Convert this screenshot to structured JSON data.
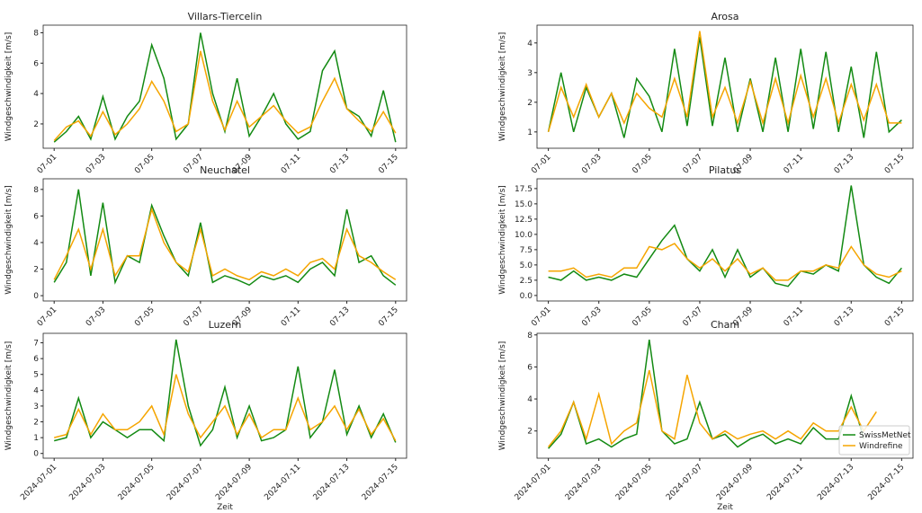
{
  "chart_data": [
    {
      "type": "line",
      "title": "Villars-Tiercelin",
      "ylabel": "Windgeschwindigkeit [m/s]",
      "x": [
        0,
        0.5,
        1,
        1.5,
        2,
        2.5,
        3,
        3.5,
        4,
        4.5,
        5,
        5.5,
        6,
        6.5,
        7,
        7.5,
        8,
        8.5,
        9,
        9.5,
        10,
        10.5,
        11,
        11.5,
        12,
        12.5,
        13,
        13.5,
        14
      ],
      "xlim": [
        -0.45,
        14.45
      ],
      "xticks": [
        {
          "value": 0,
          "label": "07-01"
        },
        {
          "value": 2,
          "label": "07-03"
        },
        {
          "value": 4,
          "label": "07-05"
        },
        {
          "value": 6,
          "label": "07-07"
        },
        {
          "value": 8,
          "label": "07-09"
        },
        {
          "value": 10,
          "label": "07-11"
        },
        {
          "value": 12,
          "label": "07-13"
        },
        {
          "value": 14,
          "label": "07-15"
        }
      ],
      "ylim": [
        0.4,
        8.5
      ],
      "yticks": [
        2,
        4,
        6,
        8
      ],
      "series": [
        {
          "color": "#138a13",
          "values": [
            0.8,
            1.5,
            2.5,
            1.0,
            3.8,
            1.0,
            2.5,
            3.5,
            7.2,
            5.0,
            1.0,
            2.0,
            8.0,
            4.0,
            1.5,
            5.0,
            1.2,
            2.5,
            4.0,
            2.0,
            1.0,
            1.5,
            5.5,
            6.8,
            3.0,
            2.5,
            1.2,
            4.2,
            0.8
          ]
        },
        {
          "color": "#f5a500",
          "values": [
            0.9,
            1.8,
            2.2,
            1.2,
            2.8,
            1.3,
            2.0,
            3.0,
            4.8,
            3.5,
            1.5,
            2.0,
            6.8,
            3.5,
            1.6,
            3.5,
            1.8,
            2.5,
            3.2,
            2.2,
            1.4,
            1.8,
            3.5,
            5.0,
            3.0,
            2.2,
            1.5,
            2.8,
            1.4
          ]
        }
      ]
    },
    {
      "type": "line",
      "title": "Arosa",
      "ylabel": "Windgeschwindigkeit [m/s]",
      "x": [
        0,
        0.5,
        1,
        1.5,
        2,
        2.5,
        3,
        3.5,
        4,
        4.5,
        5,
        5.5,
        6,
        6.5,
        7,
        7.5,
        8,
        8.5,
        9,
        9.5,
        10,
        10.5,
        11,
        11.5,
        12,
        12.5,
        13,
        13.5,
        14
      ],
      "xlim": [
        -0.45,
        14.45
      ],
      "xticks": [
        {
          "value": 0,
          "label": "07-01"
        },
        {
          "value": 2,
          "label": "07-03"
        },
        {
          "value": 4,
          "label": "07-05"
        },
        {
          "value": 6,
          "label": "07-07"
        },
        {
          "value": 8,
          "label": "07-09"
        },
        {
          "value": 10,
          "label": "07-11"
        },
        {
          "value": 12,
          "label": "07-13"
        },
        {
          "value": 14,
          "label": "07-15"
        }
      ],
      "ylim": [
        0.45,
        4.6
      ],
      "yticks": [
        1,
        2,
        3,
        4
      ],
      "series": [
        {
          "color": "#138a13",
          "values": [
            1.0,
            3.0,
            1.0,
            2.5,
            1.5,
            2.3,
            0.8,
            2.8,
            2.2,
            1.0,
            3.8,
            1.2,
            4.2,
            1.2,
            3.5,
            1.0,
            2.8,
            1.0,
            3.5,
            1.0,
            3.8,
            1.1,
            3.7,
            1.0,
            3.2,
            0.8,
            3.7,
            1.0,
            1.4
          ]
        },
        {
          "color": "#f5a500",
          "values": [
            1.0,
            2.5,
            1.5,
            2.6,
            1.5,
            2.3,
            1.3,
            2.3,
            1.8,
            1.5,
            2.8,
            1.5,
            4.4,
            1.5,
            2.5,
            1.3,
            2.7,
            1.3,
            2.8,
            1.3,
            2.9,
            1.5,
            2.8,
            1.3,
            2.6,
            1.4,
            2.6,
            1.3,
            1.3
          ]
        }
      ]
    },
    {
      "type": "line",
      "title": "Neuchatel",
      "ylabel": "Windgeschwindigkeit [m/s]",
      "x": [
        0,
        0.5,
        1,
        1.5,
        2,
        2.5,
        3,
        3.5,
        4,
        4.5,
        5,
        5.5,
        6,
        6.5,
        7,
        7.5,
        8,
        8.5,
        9,
        9.5,
        10,
        10.5,
        11,
        11.5,
        12,
        12.5,
        13,
        13.5,
        14
      ],
      "xlim": [
        -0.45,
        14.45
      ],
      "xticks": [
        {
          "value": 0,
          "label": "07-01"
        },
        {
          "value": 2,
          "label": "07-03"
        },
        {
          "value": 4,
          "label": "07-05"
        },
        {
          "value": 6,
          "label": "07-07"
        },
        {
          "value": 8,
          "label": "07-09"
        },
        {
          "value": 10,
          "label": "07-11"
        },
        {
          "value": 12,
          "label": "07-13"
        },
        {
          "value": 14,
          "label": "07-15"
        }
      ],
      "ylim": [
        -0.4,
        8.8
      ],
      "yticks": [
        0,
        2,
        4,
        6,
        8
      ],
      "series": [
        {
          "color": "#138a13",
          "values": [
            1.0,
            2.5,
            8.0,
            1.5,
            7.0,
            1.0,
            3.0,
            2.5,
            6.8,
            4.5,
            2.5,
            1.5,
            5.5,
            1.0,
            1.5,
            1.2,
            0.8,
            1.5,
            1.2,
            1.5,
            1.0,
            2.0,
            2.5,
            1.5,
            6.5,
            2.5,
            3.0,
            1.5,
            0.8
          ]
        },
        {
          "color": "#f5a500",
          "values": [
            1.2,
            3.0,
            5.0,
            2.0,
            5.0,
            1.5,
            3.0,
            3.0,
            6.5,
            4.0,
            2.5,
            1.8,
            5.0,
            1.5,
            2.0,
            1.5,
            1.2,
            1.8,
            1.5,
            2.0,
            1.5,
            2.5,
            2.8,
            2.0,
            5.0,
            3.0,
            2.5,
            1.8,
            1.2
          ]
        }
      ]
    },
    {
      "type": "line",
      "title": "Pilatus",
      "ylabel": "Windgeschwindigkeit [m/s]",
      "x": [
        0,
        0.5,
        1,
        1.5,
        2,
        2.5,
        3,
        3.5,
        4,
        4.5,
        5,
        5.5,
        6,
        6.5,
        7,
        7.5,
        8,
        8.5,
        9,
        9.5,
        10,
        10.5,
        11,
        11.5,
        12,
        12.5,
        13,
        13.5,
        14
      ],
      "xlim": [
        -0.45,
        14.45
      ],
      "xticks": [
        {
          "value": 0,
          "label": "07-01"
        },
        {
          "value": 2,
          "label": "07-03"
        },
        {
          "value": 4,
          "label": "07-05"
        },
        {
          "value": 6,
          "label": "07-07"
        },
        {
          "value": 8,
          "label": "07-09"
        },
        {
          "value": 10,
          "label": "07-11"
        },
        {
          "value": 12,
          "label": "07-13"
        },
        {
          "value": 14,
          "label": "07-15"
        }
      ],
      "ylim": [
        -0.9,
        19.1
      ],
      "yticks": [
        {
          "value": 0,
          "label": "0.0"
        },
        2.5,
        {
          "value": 5,
          "label": "5.0"
        },
        7.5,
        {
          "value": 10,
          "label": "10.0"
        },
        12.5,
        {
          "value": 15,
          "label": "15.0"
        },
        17.5
      ],
      "series": [
        {
          "color": "#138a13",
          "values": [
            3.0,
            2.5,
            4.0,
            2.5,
            3.0,
            2.5,
            3.5,
            3.0,
            6.0,
            9.0,
            11.5,
            6.0,
            4.0,
            7.5,
            3.0,
            7.5,
            3.0,
            4.5,
            2.0,
            1.5,
            4.0,
            3.5,
            5.0,
            4.0,
            18.0,
            5.0,
            3.0,
            2.0,
            4.5
          ]
        },
        {
          "color": "#f5a500",
          "values": [
            4.0,
            4.0,
            4.5,
            3.0,
            3.5,
            3.0,
            4.5,
            4.5,
            8.0,
            7.5,
            8.5,
            6.0,
            4.5,
            6.0,
            4.0,
            6.0,
            3.5,
            4.5,
            2.5,
            2.5,
            4.0,
            4.0,
            5.0,
            4.5,
            8.0,
            5.0,
            3.5,
            3.0,
            4.0
          ]
        }
      ]
    },
    {
      "type": "line",
      "title": "Luzern",
      "ylabel": "Windgeschwindigkeit [m/s]",
      "xlabel": "Zeit",
      "x": [
        0,
        0.5,
        1,
        1.5,
        2,
        2.5,
        3,
        3.5,
        4,
        4.5,
        5,
        5.5,
        6,
        6.5,
        7,
        7.5,
        8,
        8.5,
        9,
        9.5,
        10,
        10.5,
        11,
        11.5,
        12,
        12.5,
        13,
        13.5,
        14
      ],
      "xlim": [
        -0.45,
        14.45
      ],
      "xticks": [
        {
          "value": 0,
          "label": "2024-07-01"
        },
        {
          "value": 2,
          "label": "2024-07-03"
        },
        {
          "value": 4,
          "label": "2024-07-05"
        },
        {
          "value": 6,
          "label": "2024-07-07"
        },
        {
          "value": 8,
          "label": "2024-07-09"
        },
        {
          "value": 10,
          "label": "2024-07-11"
        },
        {
          "value": 12,
          "label": "2024-07-13"
        },
        {
          "value": 14,
          "label": "2024-07-15"
        }
      ],
      "ylim": [
        -0.3,
        7.6
      ],
      "yticks": [
        0,
        1,
        2,
        3,
        4,
        5,
        6,
        7
      ],
      "series": [
        {
          "color": "#138a13",
          "values": [
            0.8,
            1.0,
            3.5,
            1.0,
            2.0,
            1.5,
            1.0,
            1.5,
            1.5,
            0.8,
            7.2,
            3.0,
            0.5,
            1.5,
            4.2,
            1.0,
            3.0,
            0.8,
            1.0,
            1.5,
            5.5,
            1.0,
            2.0,
            5.3,
            1.2,
            3.0,
            1.0,
            2.5,
            0.7
          ]
        },
        {
          "color": "#f5a500",
          "values": [
            1.0,
            1.2,
            2.8,
            1.2,
            2.5,
            1.5,
            1.5,
            2.0,
            3.0,
            1.2,
            5.0,
            2.5,
            1.0,
            2.0,
            3.0,
            1.2,
            2.5,
            1.0,
            1.5,
            1.5,
            3.5,
            1.5,
            2.0,
            3.0,
            1.5,
            2.8,
            1.2,
            2.2,
            0.8
          ]
        }
      ]
    },
    {
      "type": "line",
      "title": "Cham",
      "ylabel": "Windgeschwindigkeit [m/s]",
      "xlabel": "Zeit",
      "legend": "lower right",
      "x": [
        0,
        0.5,
        1,
        1.5,
        2,
        2.5,
        3,
        3.5,
        4,
        4.5,
        5,
        5.5,
        6,
        6.5,
        7,
        7.5,
        8,
        8.5,
        9,
        9.5,
        10,
        10.5,
        11,
        11.5,
        12,
        12.5,
        13,
        13.5,
        14
      ],
      "xlim": [
        -0.45,
        14.45
      ],
      "xticks": [
        {
          "value": 0,
          "label": "2024-07-01"
        },
        {
          "value": 2,
          "label": "2024-07-03"
        },
        {
          "value": 4,
          "label": "2024-07-05"
        },
        {
          "value": 6,
          "label": "2024-07-07"
        },
        {
          "value": 8,
          "label": "2024-07-09"
        },
        {
          "value": 10,
          "label": "2024-07-11"
        },
        {
          "value": 12,
          "label": "2024-07-13"
        },
        {
          "value": 14,
          "label": "2024-07-15"
        }
      ],
      "ylim": [
        0.3,
        8.1
      ],
      "yticks": [
        2,
        4,
        6,
        8
      ],
      "series": [
        {
          "name": "SwissMetNet",
          "color": "#138a13",
          "values": [
            0.9,
            1.8,
            3.8,
            1.2,
            1.5,
            1.0,
            1.5,
            1.8,
            7.7,
            2.0,
            1.2,
            1.5,
            3.8,
            1.5,
            1.8,
            1.0,
            1.5,
            1.8,
            1.2,
            1.5,
            1.2,
            2.2,
            1.5,
            1.5,
            4.2,
            1.5,
            null,
            null,
            null
          ]
        },
        {
          "name": "Windrefine",
          "color": "#f5a500",
          "values": [
            1.0,
            2.0,
            3.8,
            1.5,
            4.3,
            1.2,
            2.0,
            2.5,
            5.8,
            2.0,
            1.5,
            5.5,
            2.5,
            1.5,
            2.0,
            1.5,
            1.8,
            2.0,
            1.5,
            2.0,
            1.5,
            2.5,
            2.0,
            2.0,
            3.5,
            2.0,
            3.2,
            null,
            null
          ]
        }
      ]
    }
  ]
}
